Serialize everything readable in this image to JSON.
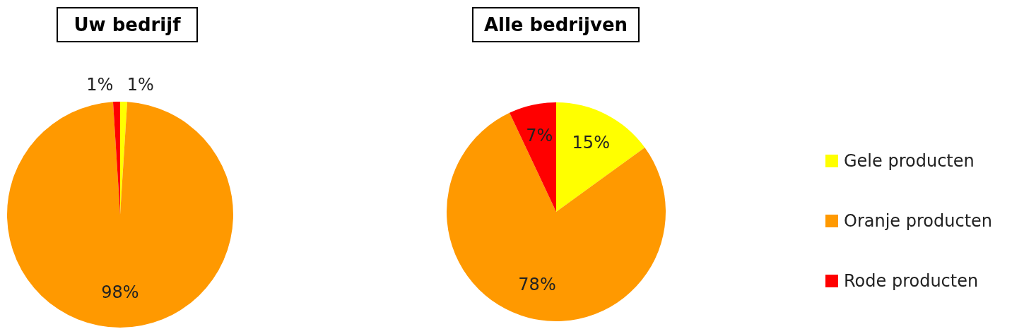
{
  "chart_data": [
    {
      "type": "pie",
      "title": "Uw bedrijf",
      "categories": [
        null,
        null,
        null
      ],
      "values": [
        1,
        98,
        1
      ],
      "colors": [
        "#ffff00",
        "#ff9900",
        "#ff0000"
      ],
      "value_labels": [
        "1%",
        "98%",
        "1%"
      ],
      "legend": false
    },
    {
      "type": "pie",
      "title": "Alle bedrijven",
      "categories": [
        "Gele producten",
        "Oranje producten",
        "Rode producten"
      ],
      "values": [
        15,
        78,
        7
      ],
      "colors": [
        "#ffff00",
        "#ff9900",
        "#ff0000"
      ],
      "value_labels": [
        "15%",
        "78%",
        "7%"
      ],
      "legend": "right"
    }
  ]
}
